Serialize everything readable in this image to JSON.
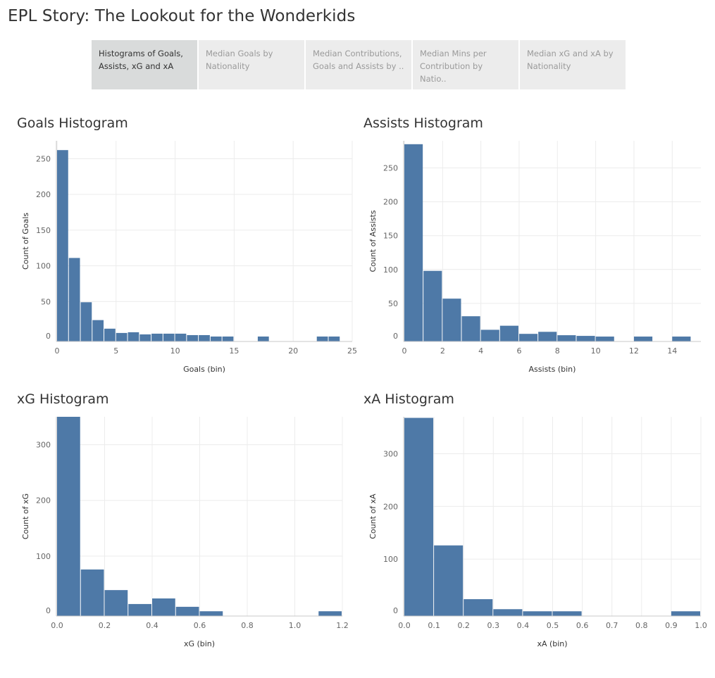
{
  "story": {
    "title": "EPL Story: The Lookout for the Wonderkids"
  },
  "tabs": [
    {
      "label": "Histograms of Goals, Assists, xG and xA",
      "active": true
    },
    {
      "label": "Median Goals by Nationality",
      "active": false
    },
    {
      "label": "Median Contributions, Goals and Assists by ..",
      "active": false
    },
    {
      "label": "Median Mins per Contribution by Natio..",
      "active": false
    },
    {
      "label": "Median xG and xA by Nationality",
      "active": false
    }
  ],
  "colors": {
    "bar": "#4e79a7",
    "grid": "#ececec",
    "axis": "#c8c8c8"
  },
  "chart_data": [
    {
      "id": "goals",
      "type": "bar",
      "title": "Goals Histogram",
      "xlabel": "Goals (bin)",
      "ylabel": "Count of Goals",
      "bin_width": 1,
      "bins": [
        0,
        1,
        2,
        3,
        4,
        5,
        6,
        7,
        8,
        9,
        10,
        11,
        12,
        13,
        14,
        15,
        16,
        17,
        18,
        19,
        20,
        21,
        22,
        23,
        24
      ],
      "values": [
        262,
        111,
        49,
        24,
        12,
        6,
        7,
        4,
        5,
        5,
        5,
        3,
        3,
        1,
        1,
        0,
        0,
        1,
        0,
        0,
        0,
        0,
        1,
        1,
        0
      ],
      "xticks": [
        0,
        5,
        10,
        15,
        20,
        25
      ],
      "xlim": [
        0,
        25
      ],
      "yticks": [
        0,
        50,
        100,
        150,
        200,
        250
      ],
      "ylim": [
        0,
        275
      ],
      "grid": true
    },
    {
      "id": "assists",
      "type": "bar",
      "title": "Assists Histogram",
      "xlabel": "Assists (bin)",
      "ylabel": "Count of Assists",
      "bin_width": 1,
      "bins": [
        0,
        1,
        2,
        3,
        4,
        5,
        6,
        7,
        8,
        9,
        10,
        11,
        12,
        13,
        14,
        15
      ],
      "values": [
        285,
        98,
        57,
        31,
        11,
        17,
        5,
        8,
        3,
        2,
        1,
        0,
        1,
        0,
        1,
        0
      ],
      "xticks": [
        0,
        2,
        4,
        6,
        8,
        10,
        12,
        14
      ],
      "xlim": [
        0,
        15.5
      ],
      "yticks": [
        0,
        50,
        100,
        150,
        200,
        250
      ],
      "ylim": [
        0,
        290
      ],
      "grid": true
    },
    {
      "id": "xg",
      "type": "bar",
      "title": "xG Histogram",
      "xlabel": "xG (bin)",
      "ylabel": "Count of xG",
      "bin_width": 0.1,
      "bins": [
        0.0,
        0.1,
        0.2,
        0.3,
        0.4,
        0.5,
        0.6,
        0.7,
        0.8,
        0.9,
        1.0,
        1.1
      ],
      "values": [
        350,
        76,
        39,
        14,
        24,
        9,
        1,
        0,
        0,
        0,
        0,
        1
      ],
      "xticks": [
        0.0,
        0.2,
        0.4,
        0.6,
        0.8,
        1.0,
        1.2
      ],
      "xtick_labels": [
        "0.0",
        "0.2",
        "0.4",
        "0.6",
        "0.8",
        "1.0",
        "1.2"
      ],
      "xlim": [
        0,
        1.2
      ],
      "yticks": [
        0,
        100,
        200,
        300
      ],
      "ylim": [
        0,
        350
      ],
      "grid": true
    },
    {
      "id": "xa",
      "type": "bar",
      "title": "xA Histogram",
      "xlabel": "xA (bin)",
      "ylabel": "Count of xA",
      "bin_width": 0.1,
      "bins": [
        0.0,
        0.1,
        0.2,
        0.3,
        0.4,
        0.5,
        0.6,
        0.7,
        0.8,
        0.9
      ],
      "values": [
        368,
        126,
        24,
        5,
        1,
        1,
        0,
        0,
        0,
        1
      ],
      "xticks": [
        0.0,
        0.1,
        0.2,
        0.3,
        0.4,
        0.5,
        0.6,
        0.7,
        0.8,
        0.9,
        1.0
      ],
      "xtick_labels": [
        "0.0",
        "0.1",
        "0.2",
        "0.3",
        "0.4",
        "0.5",
        "0.6",
        "0.7",
        "0.8",
        "0.9",
        "1.0"
      ],
      "xlim": [
        0,
        1.0
      ],
      "yticks": [
        0,
        100,
        200,
        300
      ],
      "ylim": [
        0,
        370
      ],
      "grid": true
    }
  ]
}
